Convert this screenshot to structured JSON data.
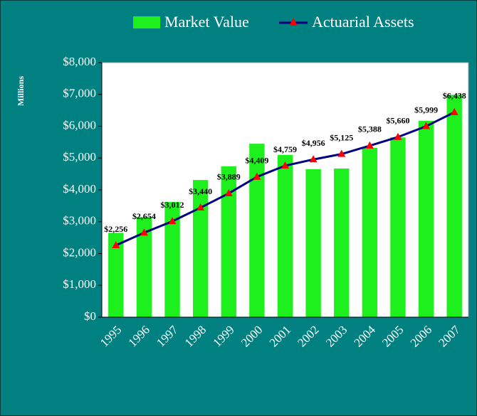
{
  "chart_data": {
    "type": "bar_line",
    "y_label": "Millions",
    "categories": [
      "1995",
      "1996",
      "1997",
      "1998",
      "1999",
      "2000",
      "2001",
      "2002",
      "2003",
      "2004",
      "2005",
      "2006",
      "2007"
    ],
    "series": [
      {
        "name": "Market Value",
        "type": "bar",
        "color": "#1ef01e",
        "values": [
          2650,
          3150,
          3620,
          4310,
          4740,
          5450,
          5100,
          4650,
          4670,
          5320,
          5650,
          6170,
          6990
        ]
      },
      {
        "name": "Actuarial Assets",
        "type": "line",
        "color": "#000080",
        "marker_color": "#ff0000",
        "values": [
          2256,
          2654,
          3012,
          3440,
          3889,
          4409,
          4759,
          4956,
          5125,
          5388,
          5660,
          5999,
          6438
        ],
        "value_labels": [
          "$2,256",
          "$2,654",
          "$3,012",
          "$3,440",
          "$3,889",
          "$4,409",
          "$4,759",
          "$4,956",
          "$5,125",
          "$5,388",
          "$5,660",
          "$5,999",
          "$6,438"
        ]
      }
    ],
    "ylim": [
      0,
      8000
    ],
    "yticks": [
      {
        "value": 0,
        "label": "$0"
      },
      {
        "value": 1000,
        "label": "$1,000"
      },
      {
        "value": 2000,
        "label": "$2,000"
      },
      {
        "value": 3000,
        "label": "$3,000"
      },
      {
        "value": 4000,
        "label": "$4,000"
      },
      {
        "value": 5000,
        "label": "$5,000"
      },
      {
        "value": 6000,
        "label": "$6,000"
      },
      {
        "value": 7000,
        "label": "$7,000"
      },
      {
        "value": 8000,
        "label": "$8,000"
      }
    ],
    "grid": false,
    "legend": "top"
  }
}
